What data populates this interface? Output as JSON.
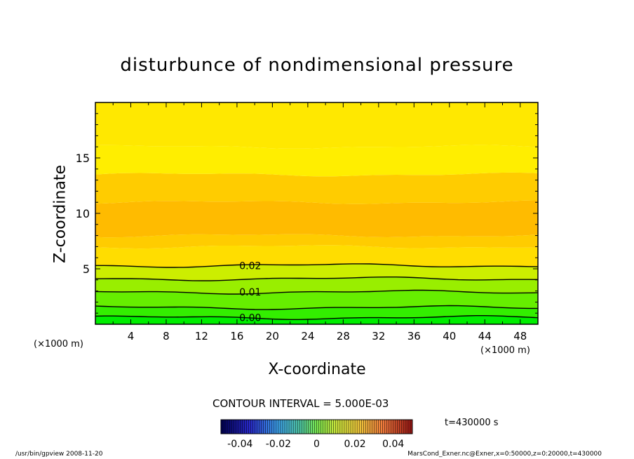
{
  "chart_data": {
    "type": "contour",
    "title": "disturbunce of nondimensional pressure",
    "xlabel": "X-coordinate",
    "ylabel": "Z-coordinate",
    "x_unit_left": "(×1000 m)",
    "x_unit_right": "(×1000 m)",
    "xlim": [
      0,
      50
    ],
    "ylim": [
      0,
      20
    ],
    "x_ticks": [
      4,
      8,
      12,
      16,
      20,
      24,
      28,
      32,
      36,
      40,
      44,
      48
    ],
    "y_ticks": [
      5,
      10,
      15
    ],
    "contour_interval_text": "CONTOUR INTERVAL = 5.000E-03",
    "contour_labels": [
      {
        "text": "0.02",
        "x": 17.5,
        "z": 5.3
      },
      {
        "text": "0.01",
        "x": 17.5,
        "z": 2.9
      },
      {
        "text": "0.00",
        "x": 17.5,
        "z": 0.6
      }
    ],
    "colorbar": {
      "range": [
        -0.05,
        0.05
      ],
      "tick_labels": [
        "-0.04",
        "-0.02",
        "0",
        "0.02",
        "0.04"
      ],
      "tick_values": [
        -0.04,
        -0.02,
        0,
        0.02,
        0.04
      ]
    },
    "field_bands": [
      {
        "z0": 0.0,
        "z1": 0.6,
        "value": 0.0
      },
      {
        "z0": 0.6,
        "z1": 1.5,
        "value": 0.005
      },
      {
        "z0": 1.5,
        "z1": 2.9,
        "value": 0.01
      },
      {
        "z0": 2.9,
        "z1": 4.1,
        "value": 0.015
      },
      {
        "z0": 4.1,
        "z1": 5.3,
        "value": 0.02
      },
      {
        "z0": 5.3,
        "z1": 7.0,
        "value": 0.024
      },
      {
        "z0": 7.0,
        "z1": 8.0,
        "value": 0.027
      },
      {
        "z0": 8.0,
        "z1": 11.0,
        "value": 0.029
      },
      {
        "z0": 11.0,
        "z1": 13.5,
        "value": 0.027
      },
      {
        "z0": 13.5,
        "z1": 16.0,
        "value": 0.025
      },
      {
        "z0": 16.0,
        "z1": 20.0,
        "value": 0.023
      }
    ],
    "contour_lines": [
      {
        "value": 0.0,
        "z": 0.6
      },
      {
        "value": 0.005,
        "z": 1.5
      },
      {
        "value": 0.01,
        "z": 2.9
      },
      {
        "value": 0.015,
        "z": 4.1
      },
      {
        "value": 0.02,
        "z": 5.3
      }
    ],
    "time_label": "t=430000 s",
    "footer_left": "/usr/bin/gpview   2008-11-20",
    "footer_right": "MarsCond_Exner.nc@Exner,x=0:50000,z=0:20000,t=430000",
    "colors": {
      "band_0.000": "#00ee00",
      "band_0.005": "#33ee00",
      "band_0.010": "#66ee00",
      "band_0.015": "#99ee00",
      "band_0.020": "#ccee00",
      "band_0.024": "#ffdd00",
      "band_0.027": "#ffcc00",
      "band_0.029": "#ffbb00",
      "band_0.023": "#ffe800"
    }
  }
}
